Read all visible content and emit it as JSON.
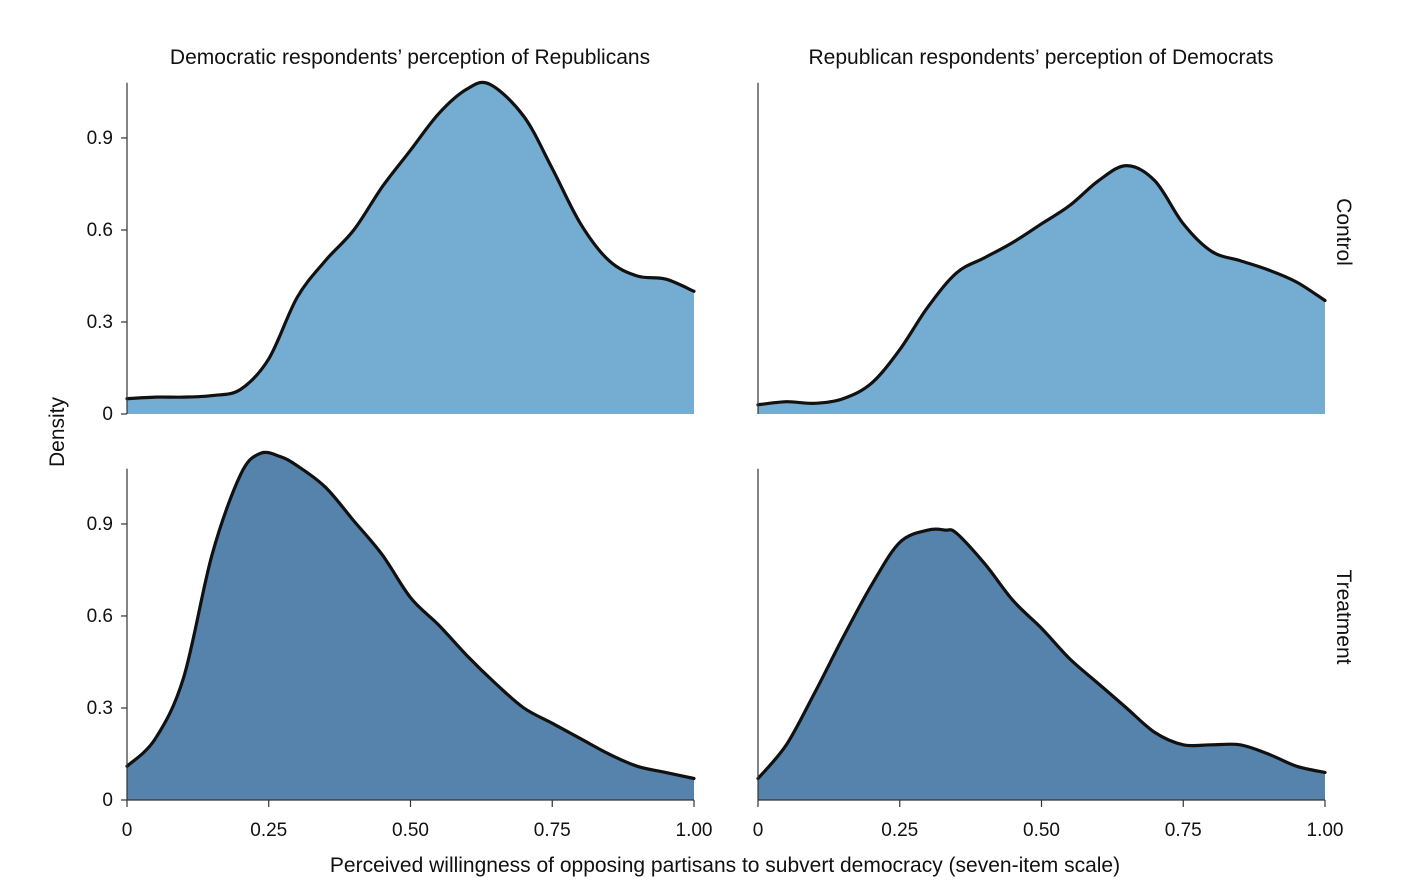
{
  "chart_data": {
    "type": "area",
    "subtype": "faceted density plot",
    "xlabel": "Perceived willingness of opposing partisans to subvert democracy (seven-item scale)",
    "ylabel": "Density",
    "columns": [
      "Democratic respondents’ perception of Republicans",
      "Republican respondents’ perception of Democrats"
    ],
    "rows": [
      "Control",
      "Treatment"
    ],
    "xlim": [
      0,
      1
    ],
    "ylim": [
      0,
      1.08
    ],
    "x_ticks": [
      0,
      0.25,
      0.5,
      0.75,
      1.0
    ],
    "x_tick_labels": [
      "0",
      "0.25",
      "0.50",
      "0.75",
      "1.00"
    ],
    "y_ticks": [
      0,
      0.3,
      0.6,
      0.9
    ],
    "y_tick_labels": [
      "0",
      "0.3",
      "0.6",
      "0.9"
    ],
    "colors": {
      "Control": "#75acd2",
      "Treatment": "#5583ab",
      "outline": "#111111"
    },
    "grid": false,
    "legend": "none",
    "panels": [
      {
        "column": 0,
        "row": "Control",
        "x": [
          0,
          0.05,
          0.1,
          0.15,
          0.2,
          0.25,
          0.3,
          0.35,
          0.4,
          0.45,
          0.5,
          0.55,
          0.6,
          0.64,
          0.7,
          0.75,
          0.8,
          0.85,
          0.9,
          0.95,
          1.0
        ],
        "y": [
          0.05,
          0.055,
          0.055,
          0.06,
          0.08,
          0.18,
          0.38,
          0.5,
          0.6,
          0.74,
          0.86,
          0.98,
          1.06,
          1.075,
          0.97,
          0.8,
          0.62,
          0.5,
          0.45,
          0.44,
          0.4
        ]
      },
      {
        "column": 1,
        "row": "Control",
        "x": [
          0,
          0.05,
          0.1,
          0.15,
          0.2,
          0.25,
          0.3,
          0.35,
          0.4,
          0.45,
          0.5,
          0.55,
          0.6,
          0.65,
          0.7,
          0.75,
          0.8,
          0.85,
          0.9,
          0.95,
          1.0
        ],
        "y": [
          0.03,
          0.04,
          0.035,
          0.05,
          0.1,
          0.21,
          0.35,
          0.46,
          0.51,
          0.56,
          0.62,
          0.68,
          0.76,
          0.81,
          0.76,
          0.62,
          0.53,
          0.5,
          0.47,
          0.43,
          0.37
        ]
      },
      {
        "column": 0,
        "row": "Treatment",
        "x": [
          0,
          0.05,
          0.1,
          0.15,
          0.2,
          0.235,
          0.27,
          0.3,
          0.35,
          0.4,
          0.45,
          0.5,
          0.55,
          0.6,
          0.65,
          0.7,
          0.75,
          0.8,
          0.85,
          0.9,
          0.95,
          1.0
        ],
        "y": [
          0.11,
          0.2,
          0.4,
          0.8,
          1.06,
          1.13,
          1.12,
          1.09,
          1.02,
          0.91,
          0.8,
          0.66,
          0.57,
          0.47,
          0.38,
          0.3,
          0.25,
          0.2,
          0.15,
          0.11,
          0.09,
          0.07
        ]
      },
      {
        "column": 1,
        "row": "Treatment",
        "x": [
          0,
          0.05,
          0.1,
          0.15,
          0.2,
          0.25,
          0.3,
          0.33,
          0.35,
          0.4,
          0.45,
          0.5,
          0.55,
          0.6,
          0.65,
          0.7,
          0.75,
          0.8,
          0.85,
          0.9,
          0.95,
          1.0
        ],
        "y": [
          0.07,
          0.18,
          0.35,
          0.53,
          0.7,
          0.84,
          0.88,
          0.88,
          0.87,
          0.77,
          0.65,
          0.56,
          0.46,
          0.38,
          0.3,
          0.22,
          0.18,
          0.18,
          0.18,
          0.15,
          0.11,
          0.09
        ]
      }
    ]
  }
}
